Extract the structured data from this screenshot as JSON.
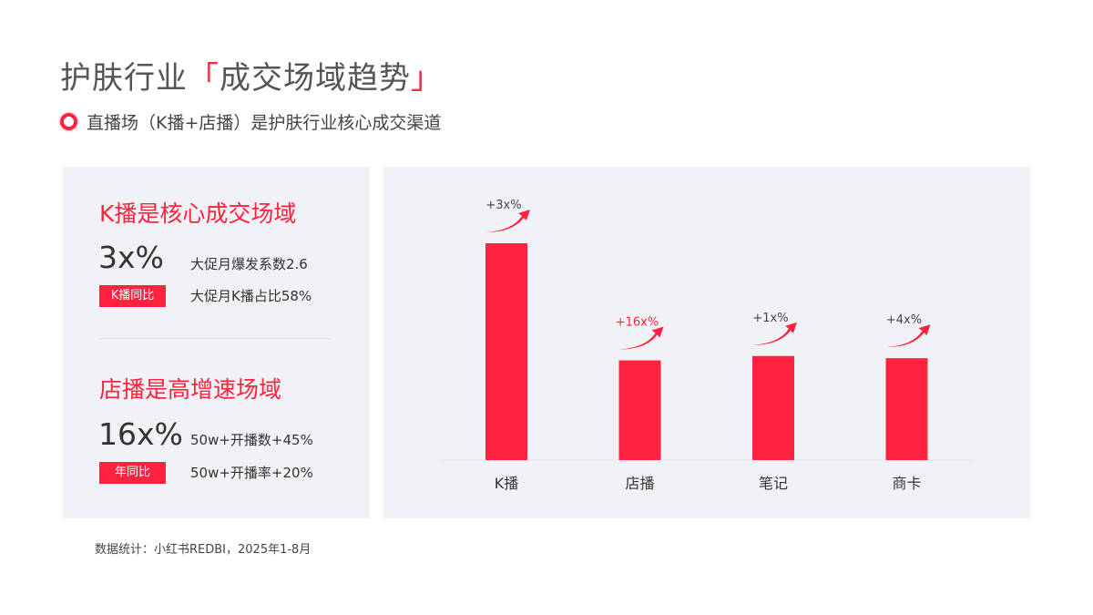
{
  "header": {
    "title_main": "护肤行业",
    "title_bracket_open": "「",
    "title_highlight": "成交场域趋势",
    "title_bracket_close": "」",
    "subtitle": "直播场（K播+店播）是护肤行业核心成交渠道"
  },
  "left_panel": {
    "block1": {
      "heading": "K播是核心成交场域",
      "big_value": "3x%",
      "tag": "K播同比",
      "notes": [
        "大促月爆发系数2.6",
        "大促月K播占比58%"
      ]
    },
    "block2": {
      "heading": "店播是高增速场域",
      "big_value": "16x%",
      "tag": "年同比",
      "notes": [
        "50w+开播数+45%",
        "50w+开播率+20%"
      ]
    }
  },
  "source": "数据统计：小红书REDBI，2025年1-8月",
  "colors": {
    "accent": "#ff2340",
    "panel_bg": "#f1f2f6"
  },
  "chart_data": {
    "type": "bar",
    "categories": [
      "K播",
      "店播",
      "笔记",
      "商卡"
    ],
    "values": [
      100,
      46,
      48,
      47
    ],
    "data_labels": [
      "+3x%",
      "+16x%",
      "+1x%",
      "+4x%"
    ],
    "highlighted_label_index": 1,
    "title": "",
    "xlabel": "",
    "ylabel": "",
    "ylim": [
      0,
      100
    ],
    "grid": false,
    "bar_color": "#ff2340"
  }
}
